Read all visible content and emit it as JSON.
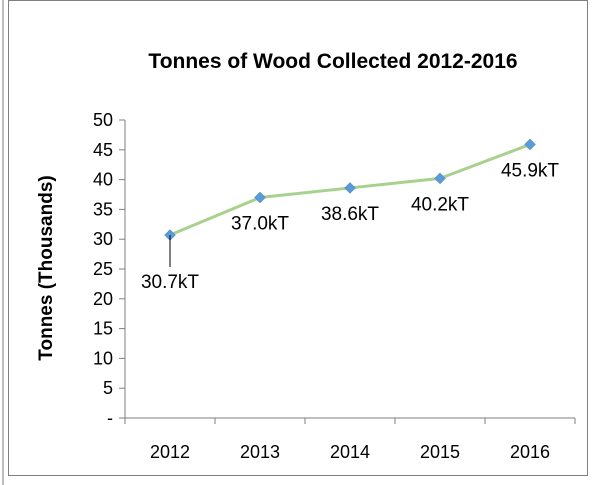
{
  "chart_data": {
    "type": "line",
    "title": "Tonnes of Wood Collected 2012-2016",
    "ylabel": "Tonnes (Thousands)",
    "xlabel": "",
    "categories": [
      "2012",
      "2013",
      "2014",
      "2015",
      "2016"
    ],
    "values": [
      30.7,
      37.0,
      38.6,
      40.2,
      45.9
    ],
    "data_labels": [
      "30.7kT",
      "37.0kT",
      "38.6kT",
      "40.2kT",
      "45.9kT"
    ],
    "ylim": [
      0,
      50
    ],
    "y_ticks": [
      0,
      5,
      10,
      15,
      20,
      25,
      30,
      35,
      40,
      45,
      50
    ],
    "y_tick_labels": [
      "-",
      "5",
      "10",
      "15",
      "20",
      "25",
      "30",
      "35",
      "40",
      "45",
      "50"
    ],
    "grid": false,
    "legend": "none",
    "colors": {
      "line": "#a9d18e",
      "marker": "#5b9bd5",
      "axis": "#7f7f7f"
    }
  }
}
